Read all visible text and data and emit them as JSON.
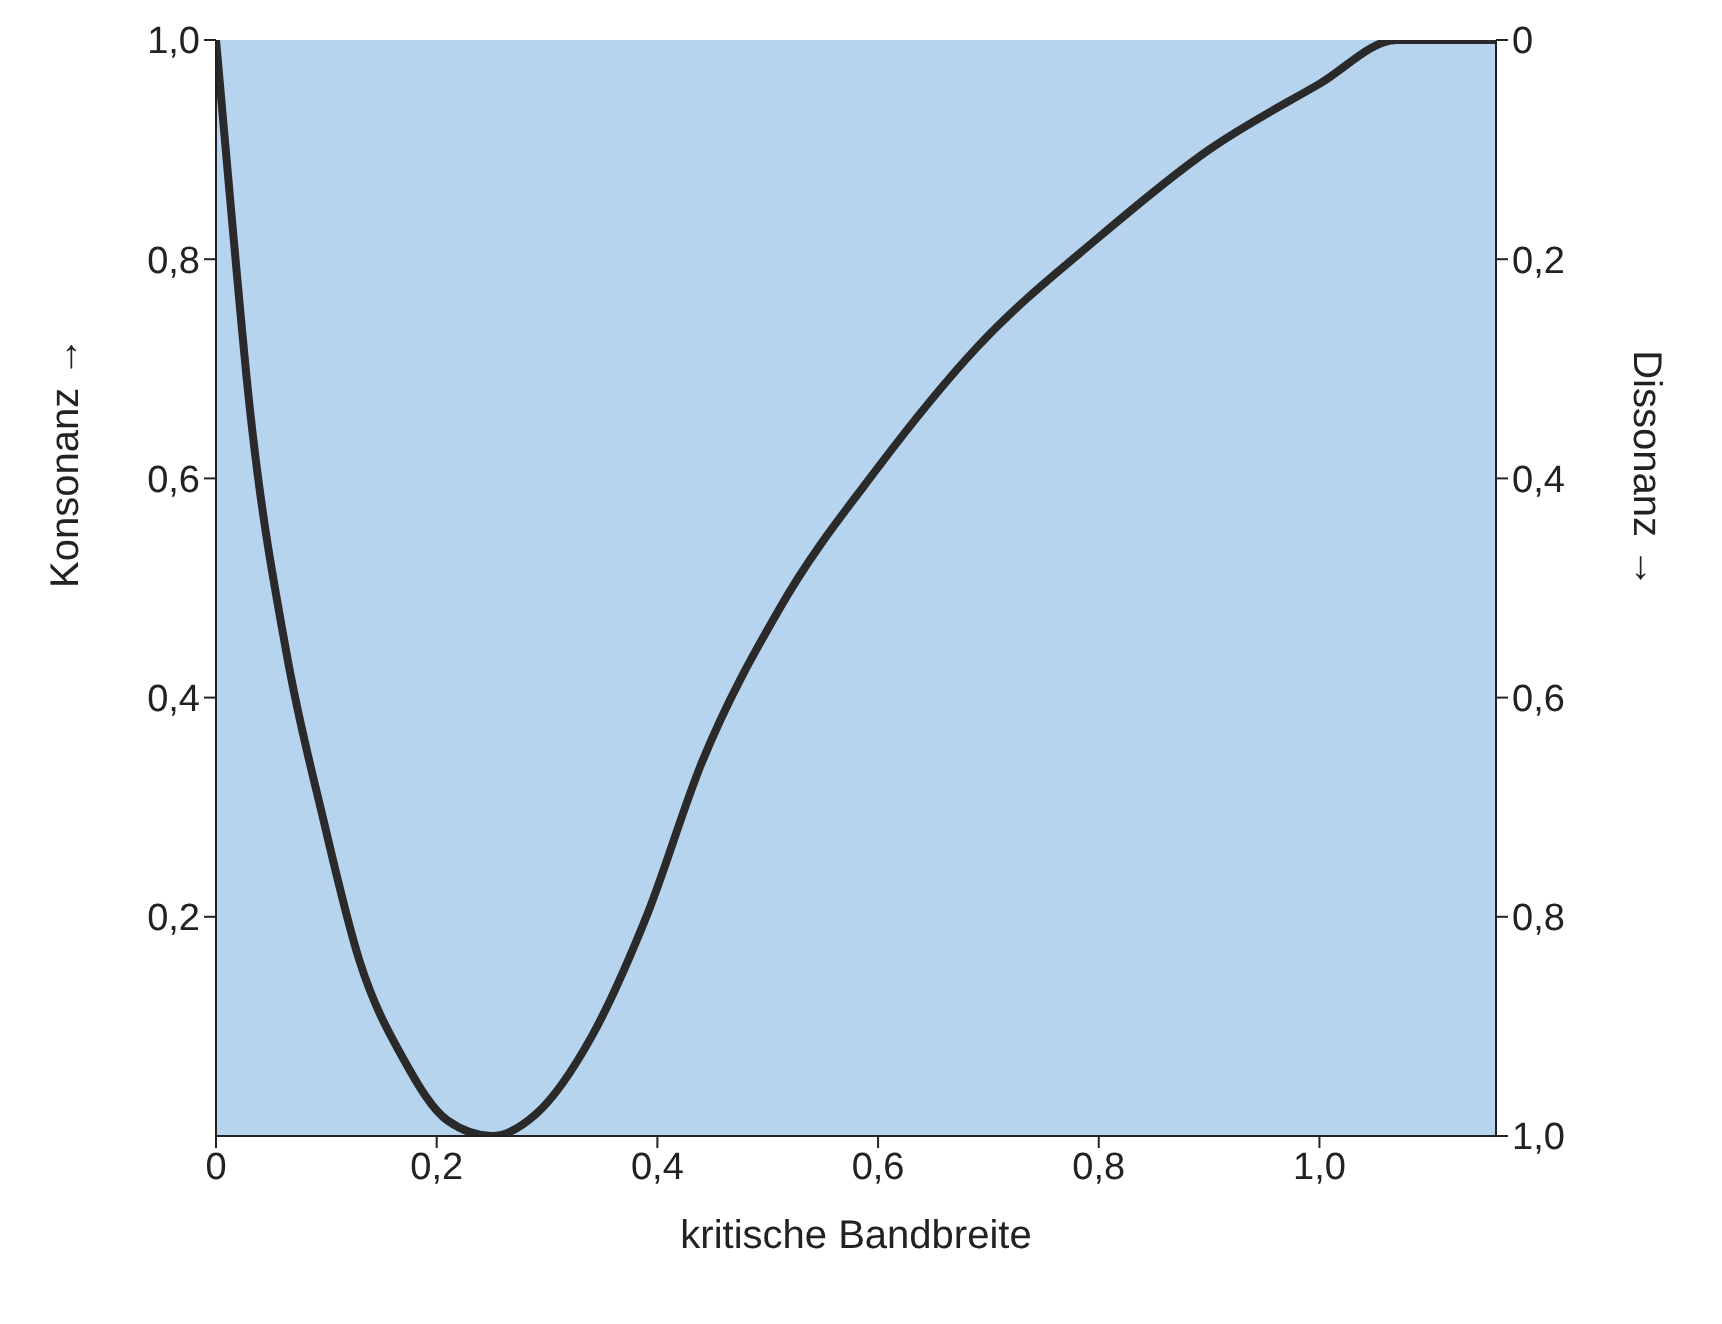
{
  "chart_data": {
    "type": "line",
    "xlabel": "kritische Bandbreite",
    "ylabel": "Konsonanz →",
    "y2label": "Dissonanz →",
    "x": [
      0,
      0.015,
      0.03,
      0.064,
      0.097,
      0.13,
      0.17,
      0.21,
      0.25,
      0.29,
      0.34,
      0.39,
      0.44,
      0.51,
      0.6,
      0.69,
      0.8,
      0.9,
      1.0,
      1.07,
      1.16
    ],
    "series": [
      {
        "color": "#2a2a2a",
        "values": [
          1.0,
          0.83,
          0.67,
          0.44,
          0.29,
          0.16,
          0.07,
          0.014,
          0,
          0.02,
          0.09,
          0.2,
          0.34,
          0.48,
          0.61,
          0.72,
          0.82,
          0.9,
          0.96,
          1.0,
          1.0
        ]
      }
    ],
    "xlim": [
      0,
      1.16
    ],
    "xticks": [
      {
        "value": 0,
        "label": "0"
      },
      {
        "value": 0.2,
        "label": "0,2"
      },
      {
        "value": 0.4,
        "label": "0,4"
      },
      {
        "value": 0.6,
        "label": "0,6"
      },
      {
        "value": 0.8,
        "label": "0,8"
      },
      {
        "value": 1.0,
        "label": "1,0"
      }
    ],
    "ylim": [
      0,
      1
    ],
    "yticks": [
      {
        "value": 0.2,
        "label": "0,2"
      },
      {
        "value": 0.4,
        "label": "0,4"
      },
      {
        "value": 0.6,
        "label": "0,6"
      },
      {
        "value": 0.8,
        "label": "0,8"
      },
      {
        "value": 1.0,
        "label": "1,0"
      }
    ],
    "y2lim": [
      1,
      0
    ],
    "y2ticks": [
      {
        "value": 0,
        "label": "0"
      },
      {
        "value": 0.2,
        "label": "0,2"
      },
      {
        "value": 0.4,
        "label": "0,4"
      },
      {
        "value": 0.6,
        "label": "0,6"
      },
      {
        "value": 0.8,
        "label": "0,8"
      },
      {
        "value": 1.0,
        "label": "1,0"
      }
    ],
    "grid": false,
    "legend": false,
    "marker": "none",
    "line_style": "solid"
  }
}
